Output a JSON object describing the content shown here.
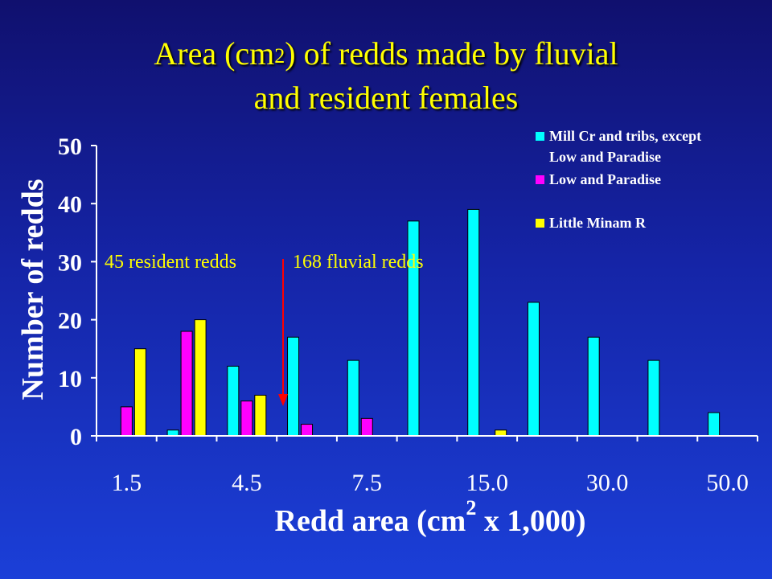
{
  "title_line1_pre": "Area (cm",
  "title_line1_sub": "2",
  "title_line1_post": ") of redds made by fluvial",
  "title_line2": "and resident females",
  "colors": {
    "series_mill": "#00ffff",
    "series_low": "#ff00ff",
    "series_little": "#ffff00",
    "arrow": "#ff0000",
    "annotation": "#ffff00"
  },
  "chart_data": {
    "type": "bar",
    "ylabel": "Number of redds",
    "xlabel_main": "Redd area (cm",
    "xlabel_sup": "2",
    "xlabel_post": " x 1,000)",
    "ylim": [
      0,
      50
    ],
    "yticks": [
      "0",
      "10",
      "20",
      "30",
      "40",
      "50"
    ],
    "xtick_labels": [
      "1.5",
      "4.5",
      "7.5",
      "15.0",
      "30.0",
      "50.0"
    ],
    "categories": [
      "",
      "",
      "",
      "",
      "",
      "",
      "",
      "",
      "",
      "",
      ""
    ],
    "series": [
      {
        "name": "Mill Cr and tribs, except Low and Paradise",
        "color": "#00ffff",
        "values": [
          0,
          1,
          12,
          17,
          13,
          37,
          39,
          23,
          17,
          13,
          4
        ]
      },
      {
        "name": "Low and Paradise",
        "color": "#ff00ff",
        "values": [
          5,
          18,
          6,
          2,
          3,
          0,
          0,
          0,
          0,
          0,
          0
        ]
      },
      {
        "name": "Little Minam R",
        "color": "#ffff00",
        "values": [
          15,
          20,
          7,
          0,
          0,
          0,
          1,
          0,
          0,
          0,
          0
        ]
      }
    ],
    "legend": {
      "position": "top-right",
      "entries": [
        {
          "line1": "Mill Cr and tribs, except",
          "line2": "Low and Paradise",
          "color": "#00ffff"
        },
        {
          "line1": "Low and Paradise",
          "line2": "",
          "color": "#ff00ff"
        },
        {
          "line1": "Little Minam R",
          "line2": "",
          "color": "#ffff00"
        }
      ]
    },
    "annotations": {
      "resident": "45 resident redds",
      "fluvial": "168 fluvial redds"
    }
  }
}
